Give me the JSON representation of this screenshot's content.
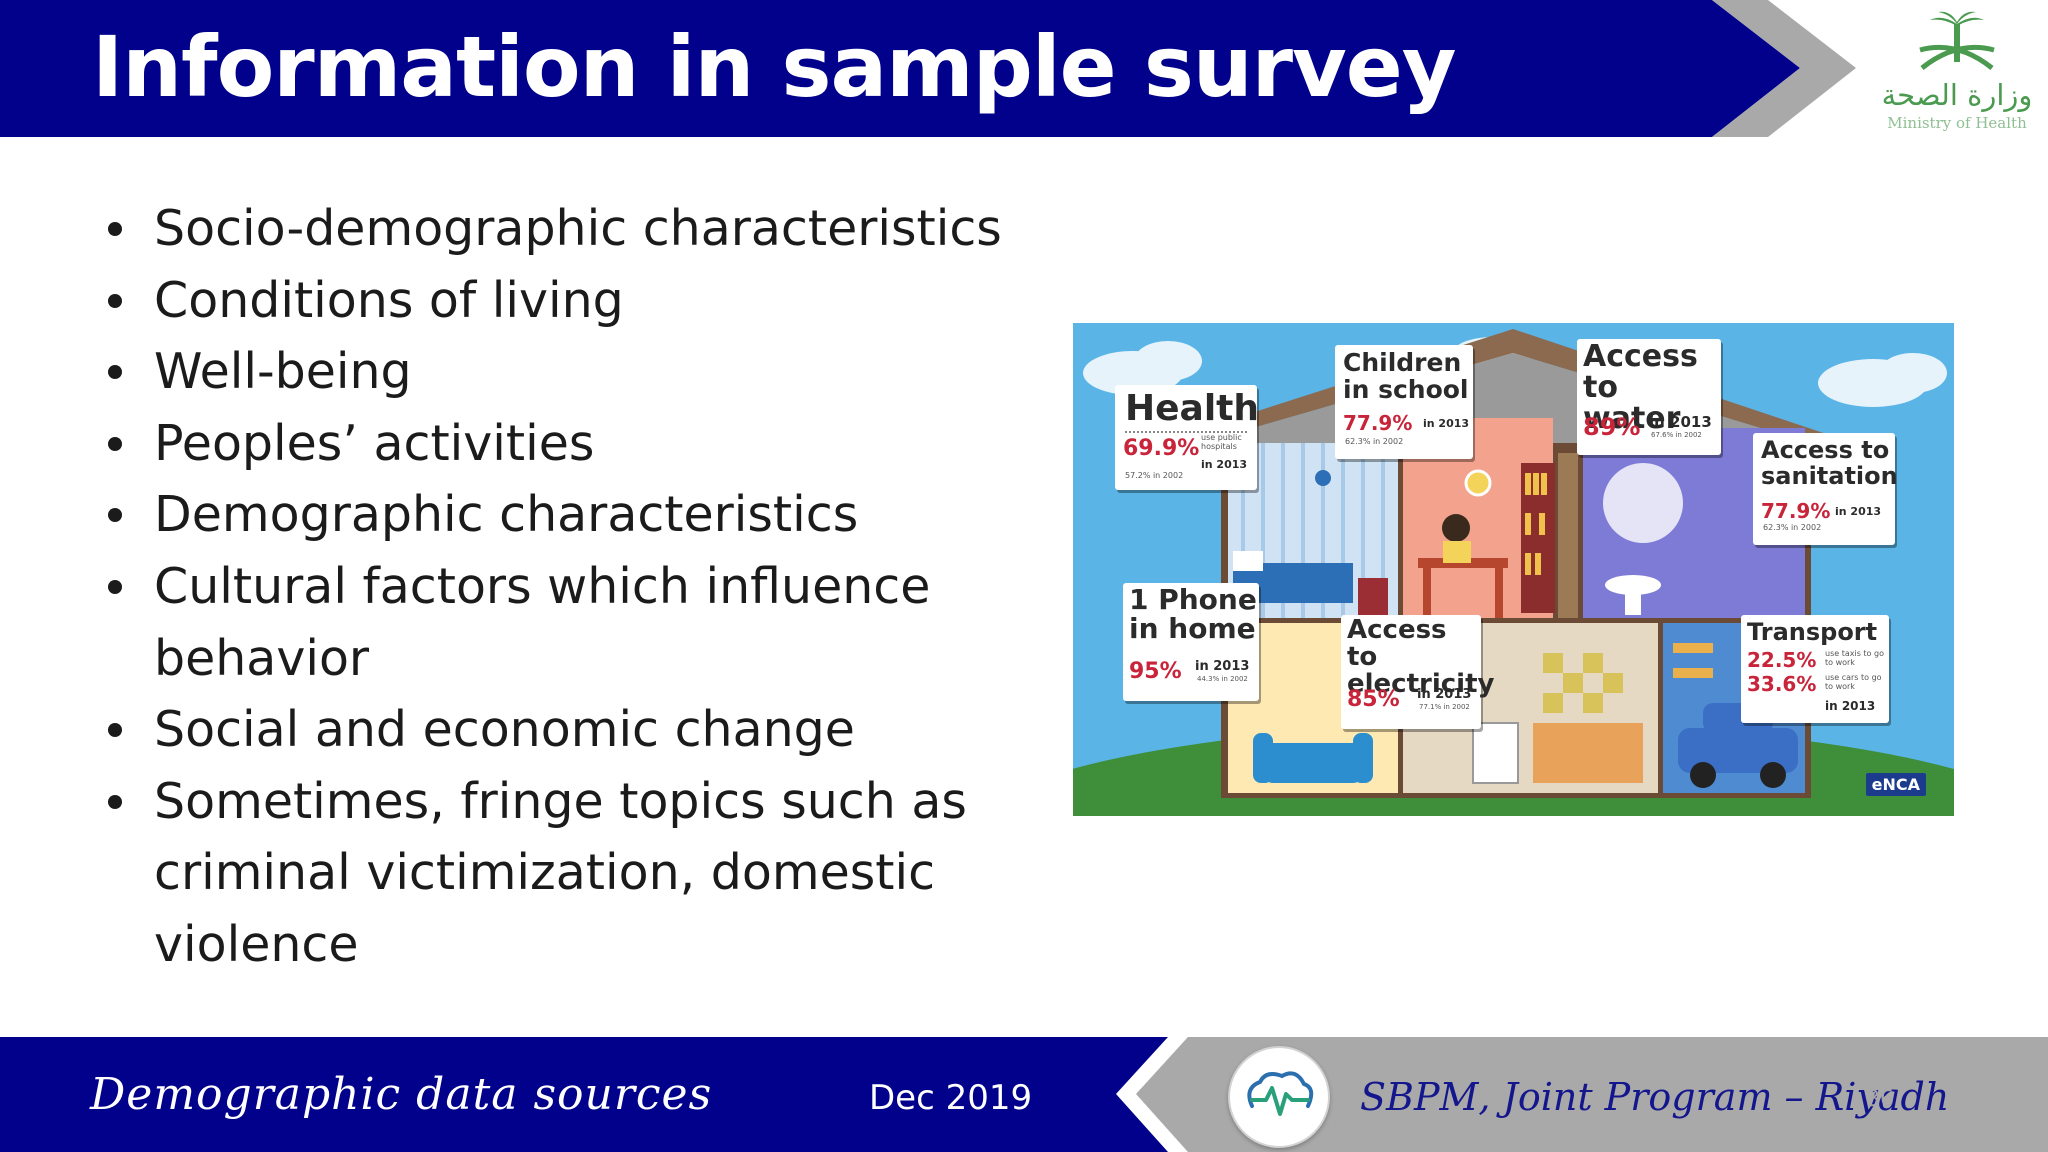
{
  "slide": {
    "title": "Information in sample survey"
  },
  "logo": {
    "arabic": "وزارة الصحة",
    "english": "Ministry of Health"
  },
  "bullets": [
    "Socio-demographic characteristics",
    "Conditions of living",
    "Well-being",
    "Peoples’ activities",
    "Demographic characteristics",
    "Cultural factors which influence behavior",
    "Social and economic change",
    "Sometimes, fringe topics such as criminal victimization, domestic violence"
  ],
  "infographic": {
    "health": {
      "title": "Health",
      "pct": "69.9%",
      "note": "use public hospitals",
      "year": "in 2013",
      "prev": "57.2% in 2002"
    },
    "school": {
      "title": "Children in school",
      "pct": "77.9%",
      "year": "in 2013",
      "prev": "62.3% in 2002"
    },
    "water": {
      "title": "Access to water",
      "pct": "89%",
      "year": "in 2013",
      "prev": "67.6% in 2002"
    },
    "sanitation": {
      "title": "Access to sanitation",
      "pct": "77.9%",
      "year": "in 2013",
      "prev": "62.3% in 2002"
    },
    "phone": {
      "title": "1 Phone in home",
      "pct": "95%",
      "year": "in 2013",
      "prev": "44.3% in 2002"
    },
    "electricity": {
      "title": "Access to electricity",
      "pct": "85%",
      "year": "in 2013",
      "prev": "77.1% in 2002"
    },
    "transport": {
      "title": "Transport",
      "pct1": "22.5%",
      "note1": "use taxis to go to work",
      "pct2": "33.6%",
      "note2": "use cars to go to work",
      "year": "in 2013"
    },
    "credit": "eNCA"
  },
  "footer": {
    "left": "Demographic data sources",
    "date": "Dec 2019",
    "program": "SBPM, Joint Program – Riyadh",
    "page": "36"
  },
  "colors": {
    "navy": "#01018c",
    "gray": "#a9a9a9",
    "accent_red": "#c8243a",
    "logo_green": "#4a9a4f"
  },
  "icons": [
    "palm-swords-logo-icon",
    "heartbeat-logo-icon",
    "chevron-arrow-icon"
  ]
}
